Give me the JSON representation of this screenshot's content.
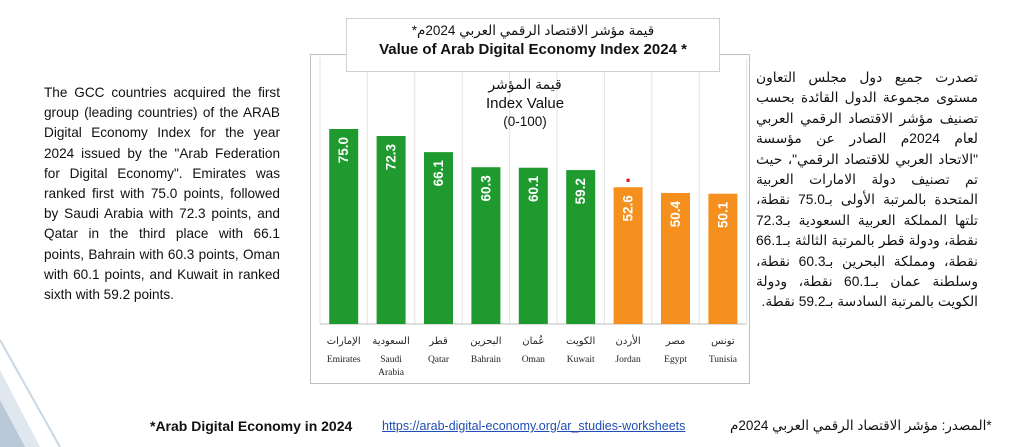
{
  "left_paragraph": "The GCC countries acquired the first group (leading countries) of the ARAB Digital Economy Index for the year 2024 issued by the \"Arab Federation for Digital Economy\". Emirates was ranked first with 75.0 points, followed by Saudi Arabia with 72.3 points, and Qatar in the third place with 66.1 points, Bahrain with 60.3 points, Oman with 60.1 points, and Kuwait in ranked sixth with 59.2 points.",
  "right_paragraph": "تصدرت جميع دول مجلس التعاون مستوى مجموعة الدول القائدة بحسب تصنيف مؤشر الاقتصاد الرقمي العربي لعام 2024م الصادر عن مؤسسة \"الاتحاد العربي للاقتصاد الرقمي\"، حيث تم تصنيف دولة الامارات العربية المتحدة بالمرتبة الأولى بـ75.0 نقطة، تلتها المملكة العربية السعودية بـ72.3 نقطة، ودولة قطر بالمرتبة الثالثة بـ66.1 نقطة، ومملكة البحرين بـ60.3 نقطة، وسلطنة عمان بـ60.1 نقطة، ودولة الكويت بالمرتبة السادسة بـ59.2 نقطة.",
  "footer": {
    "english": "*Arab Digital Economy in 2024",
    "url": "https://arab-digital-economy.org/ar_studies-worksheets",
    "arabic": "*المصدر: مؤشر الاقتصاد الرقمي العربي 2024م"
  },
  "colors": {
    "gcc_bar": "#1f9a2f",
    "other_bar": "#f5901e",
    "marker": "#e02020"
  },
  "chart_data": {
    "type": "bar",
    "title": "Value of Arab Digital Economy Index 2024 *",
    "title_ar": "قيمة مؤشر الاقتصاد الرقمي العربي 2024م*",
    "ylabel_ar": "قيمة المؤشر",
    "ylabel": "Index Value",
    "yrange_label": "(0-100)",
    "ylim": [
      0,
      100
    ],
    "grid": true,
    "categories": [
      {
        "en": "Emirates",
        "ar": "الإمارات",
        "value": 75.0,
        "label": "75.0",
        "group": "gcc"
      },
      {
        "en": "Saudi Arabia",
        "ar": "السعودية",
        "value": 72.3,
        "label": "72.3",
        "group": "gcc"
      },
      {
        "en": "Qatar",
        "ar": "قطر",
        "value": 66.1,
        "label": "66.1",
        "group": "gcc"
      },
      {
        "en": "Bahrain",
        "ar": "البحرين",
        "value": 60.3,
        "label": "60.3",
        "group": "gcc"
      },
      {
        "en": "Oman",
        "ar": "عُمان",
        "value": 60.1,
        "label": "60.1",
        "group": "gcc"
      },
      {
        "en": "Kuwait",
        "ar": "الكويت",
        "value": 59.2,
        "label": "59.2",
        "group": "gcc"
      },
      {
        "en": "Jordan",
        "ar": "الأردن",
        "value": 52.6,
        "label": "52.6",
        "group": "other",
        "marker": true
      },
      {
        "en": "Egypt",
        "ar": "مصر",
        "value": 50.4,
        "label": "50.4",
        "group": "other"
      },
      {
        "en": "Tunisia",
        "ar": "تونس",
        "value": 50.1,
        "label": "50.1",
        "group": "other"
      }
    ]
  }
}
